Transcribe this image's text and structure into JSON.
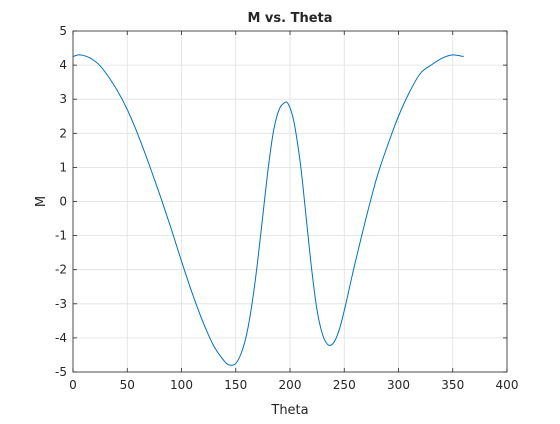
{
  "chart_data": {
    "type": "line",
    "title": "M vs. Theta",
    "xlabel": "Theta",
    "ylabel": "M",
    "xlim": [
      0,
      400
    ],
    "ylim": [
      -5,
      5
    ],
    "xticks": [
      "0",
      "50",
      "100",
      "150",
      "200",
      "250",
      "300",
      "350",
      "400"
    ],
    "yticks": [
      "5",
      "4",
      "3",
      "2",
      "1",
      "0",
      "-1",
      "-2",
      "-3",
      "-4",
      "-5"
    ],
    "grid": true,
    "series": [
      {
        "color": "#0072BD",
        "x": [
          0,
          5,
          10,
          15,
          20,
          25,
          30,
          40,
          50,
          60,
          70,
          80,
          90,
          100,
          110,
          120,
          130,
          140,
          145,
          150,
          155,
          160,
          165,
          170,
          175,
          180,
          185,
          190,
          195,
          198,
          202,
          205,
          210,
          215,
          220,
          225,
          230,
          235,
          240,
          245,
          250,
          255,
          260,
          270,
          280,
          290,
          300,
          310,
          320,
          330,
          340,
          350,
          360
        ],
        "y": [
          4.25,
          4.3,
          4.28,
          4.22,
          4.12,
          3.98,
          3.78,
          3.3,
          2.7,
          1.95,
          1.1,
          0.2,
          -0.75,
          -1.75,
          -2.7,
          -3.55,
          -4.25,
          -4.7,
          -4.8,
          -4.75,
          -4.45,
          -3.9,
          -3.0,
          -1.8,
          -0.4,
          1.0,
          2.1,
          2.7,
          2.9,
          2.88,
          2.55,
          2.1,
          1.0,
          -0.5,
          -2.0,
          -3.2,
          -3.9,
          -4.2,
          -4.15,
          -3.8,
          -3.2,
          -2.5,
          -1.8,
          -0.5,
          0.7,
          1.65,
          2.5,
          3.2,
          3.75,
          4.0,
          4.2,
          4.3,
          4.25
        ]
      }
    ]
  }
}
